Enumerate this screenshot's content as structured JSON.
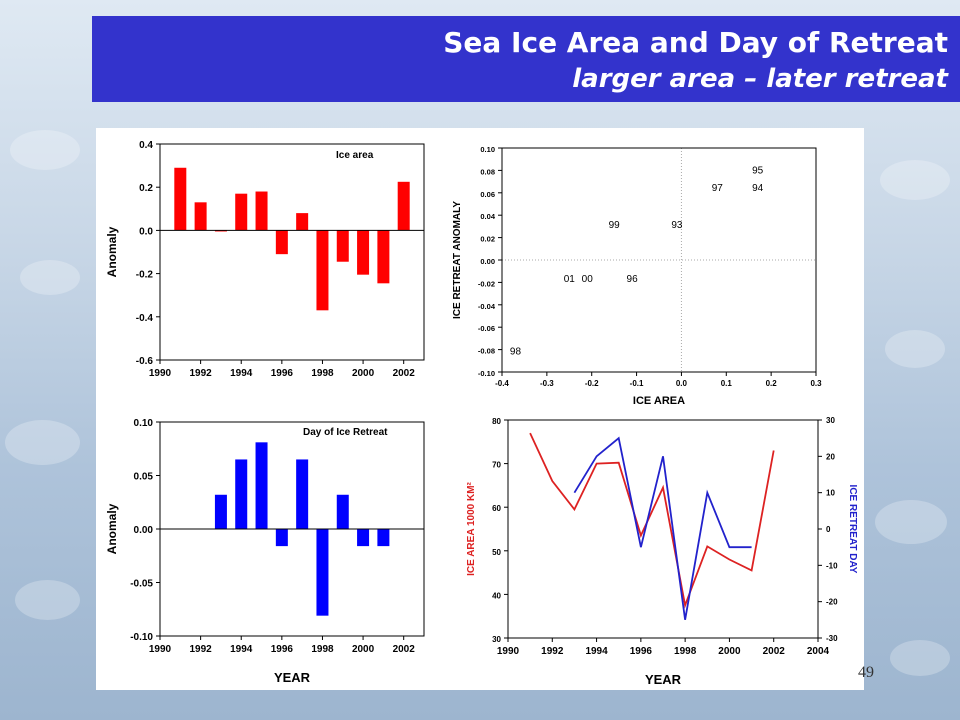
{
  "slide": {
    "title": "Sea Ice Area and Day of Retreat",
    "subtitle": "larger area – later retreat",
    "page_number": "49",
    "title_bar_color": "#3333cc"
  },
  "chart_data": [
    {
      "type": "bar",
      "label": "Ice area",
      "ylabel": "Anomaly",
      "xlabel": "",
      "xlim": [
        1990,
        2003
      ],
      "ylim": [
        -0.6,
        0.4
      ],
      "xticks": [
        "1990",
        "1992",
        "1994",
        "1996",
        "1998",
        "2000",
        "2002"
      ],
      "yticks": [
        "-0.6",
        "-0.4",
        "-0.2",
        "0.0",
        "0.2",
        "0.4"
      ],
      "color": "#ff0000",
      "x": [
        1991,
        1992,
        1993,
        1994,
        1995,
        1996,
        1997,
        1998,
        1999,
        2000,
        2001,
        2002
      ],
      "values": [
        0.29,
        0.13,
        -0.005,
        0.17,
        0.18,
        -0.11,
        0.08,
        -0.37,
        -0.145,
        -0.205,
        -0.245,
        0.225
      ]
    },
    {
      "type": "scatter",
      "xlabel": "ICE AREA",
      "ylabel": "ICE RETREAT ANOMALY",
      "xlim": [
        -0.4,
        0.3
      ],
      "ylim": [
        -0.1,
        0.1
      ],
      "xticks": [
        "-0.4",
        "-0.3",
        "-0.2",
        "-0.1",
        "0.0",
        "0.1",
        "0.2",
        "0.3"
      ],
      "yticks": [
        "-0.10",
        "-0.08",
        "-0.06",
        "-0.04",
        "-0.02",
        "0.00",
        "0.02",
        "0.04",
        "0.06",
        "0.08",
        "0.10"
      ],
      "points": [
        {
          "label": "95",
          "x": 0.17,
          "y": 0.081
        },
        {
          "label": "97",
          "x": 0.08,
          "y": 0.065
        },
        {
          "label": "94",
          "x": 0.17,
          "y": 0.065
        },
        {
          "label": "99",
          "x": -0.15,
          "y": 0.032
        },
        {
          "label": "93",
          "x": -0.01,
          "y": 0.032
        },
        {
          "label": "01",
          "x": -0.25,
          "y": -0.016
        },
        {
          "label": "00",
          "x": -0.21,
          "y": -0.016
        },
        {
          "label": "96",
          "x": -0.11,
          "y": -0.016
        },
        {
          "label": "98",
          "x": -0.37,
          "y": -0.081
        }
      ]
    },
    {
      "type": "bar",
      "label": "Day of Ice Retreat",
      "ylabel": "Anomaly",
      "xlabel": "YEAR",
      "xlim": [
        1990,
        2003
      ],
      "ylim": [
        -0.1,
        0.1
      ],
      "xticks": [
        "1990",
        "1992",
        "1994",
        "1996",
        "1998",
        "2000",
        "2002"
      ],
      "yticks": [
        "-0.10",
        "-0.05",
        "0.00",
        "0.05",
        "0.10"
      ],
      "color": "#0000ff",
      "x": [
        1993,
        1994,
        1995,
        1996,
        1997,
        1998,
        1999,
        2000,
        2001
      ],
      "values": [
        0.032,
        0.065,
        0.081,
        -0.016,
        0.065,
        -0.081,
        0.032,
        -0.016,
        -0.016
      ]
    },
    {
      "type": "line",
      "xlabel": "YEAR",
      "ylabel": "ICE AREA 1000 KM²",
      "y2label": "ICE RETREAT DAY",
      "xlim": [
        1990,
        2004
      ],
      "ylim": [
        30,
        80
      ],
      "y2lim": [
        -30,
        30
      ],
      "xticks": [
        "1990",
        "1992",
        "1994",
        "1996",
        "1998",
        "2000",
        "2002",
        "2004"
      ],
      "yticks": [
        "30",
        "40",
        "50",
        "60",
        "70",
        "80"
      ],
      "y2ticks": [
        "-30",
        "-20",
        "-10",
        "0",
        "10",
        "20",
        "30"
      ],
      "series": [
        {
          "axis": "left",
          "color": "#dd2222",
          "x": [
            1991,
            1992,
            1993,
            1994,
            1995,
            1996,
            1997,
            1998,
            1999,
            2000,
            2001,
            2002
          ],
          "values": [
            77,
            66,
            59.5,
            70,
            70.2,
            53.5,
            64.5,
            37.5,
            51,
            48,
            45.5,
            73
          ]
        },
        {
          "axis": "right",
          "color": "#2222cc",
          "x": [
            1993,
            1994,
            1995,
            1996,
            1997,
            1998,
            1999,
            2000,
            2001
          ],
          "values": [
            10,
            20,
            25,
            -5,
            20,
            -25,
            10,
            -5,
            -5
          ]
        }
      ]
    }
  ]
}
